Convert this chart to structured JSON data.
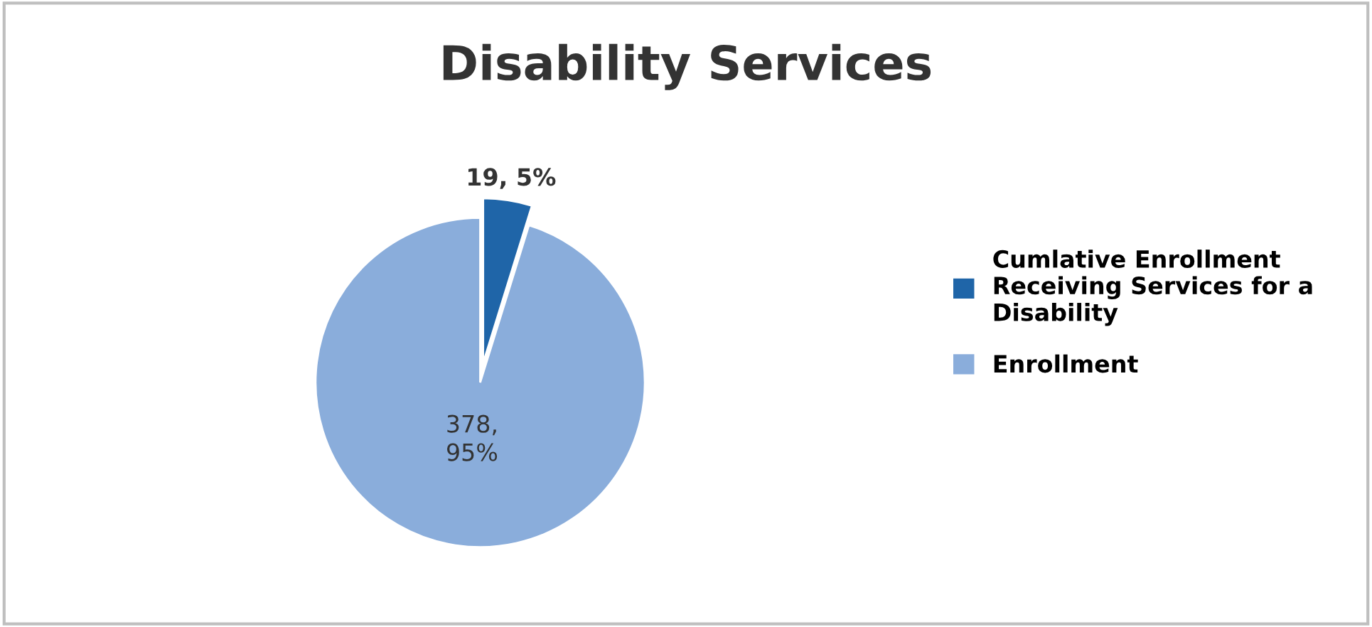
{
  "chart_data": {
    "type": "pie",
    "title": "Disability Services",
    "categories": [
      "Cumlative Enrollment Receiving Services for a Disability",
      "Enrollment"
    ],
    "values": [
      19,
      378
    ],
    "colors": [
      "#1f65a8",
      "#8aaddb"
    ],
    "value_labels": [
      "19, 5%",
      "378,\n95%"
    ],
    "legend": "right"
  }
}
